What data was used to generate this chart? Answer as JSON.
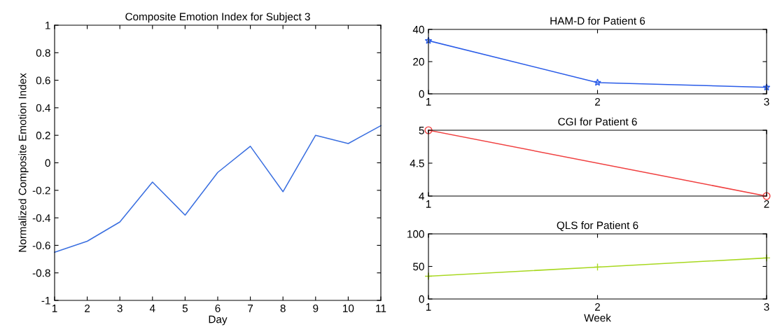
{
  "chart_data": [
    {
      "type": "line",
      "title": "Composite Emotion Index for Subject 3",
      "xlabel": "Day",
      "ylabel": "Normalized Composite Emotion Index",
      "x": [
        1,
        2,
        3,
        4,
        5,
        6,
        7,
        8,
        9,
        10,
        11
      ],
      "series": [
        {
          "color": "#3a6fe0",
          "values": [
            -0.65,
            -0.57,
            -0.43,
            -0.14,
            -0.38,
            -0.07,
            0.12,
            -0.21,
            0.2,
            0.14,
            0.27
          ]
        }
      ],
      "xlim": [
        1,
        11
      ],
      "xticks": [
        1,
        2,
        3,
        4,
        5,
        6,
        7,
        8,
        9,
        10,
        11
      ],
      "ylim": [
        -1,
        1
      ],
      "yticks": [
        -1,
        -0.8,
        -0.6,
        -0.4,
        -0.2,
        0,
        0.2,
        0.4,
        0.6,
        0.8,
        1
      ],
      "grid": false,
      "marker": "none"
    },
    {
      "type": "line",
      "title": "HAM-D for Patient 6",
      "x": [
        1,
        2,
        3
      ],
      "series": [
        {
          "color": "#2a5ce8",
          "values": [
            33,
            7,
            4
          ]
        }
      ],
      "xlim": [
        1,
        3
      ],
      "xticks": [
        1,
        2,
        3
      ],
      "ylim": [
        0,
        40
      ],
      "yticks": [
        0,
        20,
        40
      ],
      "grid": false,
      "marker": "star"
    },
    {
      "type": "line",
      "title": "CGI for Patient 6",
      "x": [
        1,
        2
      ],
      "series": [
        {
          "color": "#f04040",
          "values": [
            5,
            4
          ]
        }
      ],
      "xlim": [
        1,
        2
      ],
      "xticks": [
        1,
        2
      ],
      "ylim": [
        4,
        5
      ],
      "yticks": [
        4,
        4.5,
        5
      ],
      "grid": false,
      "marker": "circle"
    },
    {
      "type": "line",
      "title": "QLS for Patient 6",
      "xlabel": "Week",
      "x": [
        1,
        2,
        3
      ],
      "series": [
        {
          "color": "#a8d820",
          "values": [
            35,
            49,
            63
          ]
        }
      ],
      "xlim": [
        1,
        3
      ],
      "xticks": [
        1,
        2,
        3
      ],
      "ylim": [
        0,
        100
      ],
      "yticks": [
        0,
        50,
        100
      ],
      "grid": false,
      "marker": "cross"
    }
  ]
}
